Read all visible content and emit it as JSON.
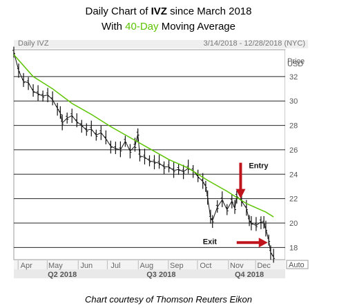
{
  "title": {
    "pre": "Daily Chart of ",
    "ticker": "IVZ",
    "post": " since March 2018",
    "line2_pre": "With ",
    "line2_hl": "40-Day",
    "line2_post": " Moving Average"
  },
  "panel": {
    "left_label": "Daily IVZ",
    "date_range": "3/14/2018 - 12/28/2018 (NYC)",
    "axis_title_1": "Price",
    "axis_title_2": "USD",
    "auto_label": "Auto"
  },
  "caption": "Chart courtesy of Thomson Reuters Eikon",
  "colors": {
    "ma": "#5cc400",
    "price": "#111111",
    "arrow": "#c0141c",
    "grid": "#222222",
    "band": "#e9e9e9"
  },
  "chart_data": {
    "type": "line",
    "title": "Daily Chart of IVZ since March 2018",
    "subtitle": "With 40-Day Moving Average",
    "ylabel": "Price USD",
    "ylim": [
      17,
      34.2
    ],
    "yticks": [
      18,
      20,
      22,
      24,
      26,
      28,
      30,
      32
    ],
    "x_month_labels": [
      "Apr",
      "May",
      "Jun",
      "Jul",
      "Aug",
      "Sep",
      "Oct",
      "Nov",
      "Dec"
    ],
    "x_month_positions": [
      13,
      43,
      75,
      105,
      137,
      168,
      198,
      230,
      258
    ],
    "x_quarter_labels": [
      "Q2 2018",
      "Q3 2018",
      "Q4 2018"
    ],
    "x_quarter_positions": [
      50,
      152,
      243
    ],
    "x_range": [
      0,
      280
    ],
    "series": [
      {
        "name": "IVZ",
        "style": "ohlc",
        "x": [
          0,
          5,
          10,
          15,
          20,
          25,
          30,
          35,
          40,
          45,
          48,
          50,
          55,
          60,
          65,
          70,
          75,
          80,
          85,
          90,
          95,
          100,
          105,
          110,
          115,
          120,
          125,
          128,
          130,
          135,
          140,
          145,
          150,
          155,
          160,
          165,
          170,
          175,
          180,
          185,
          190,
          195,
          198,
          200,
          203,
          205,
          210,
          215,
          220,
          225,
          228,
          230,
          235,
          240,
          243,
          245,
          250,
          255,
          258,
          260,
          263,
          265,
          268
        ],
        "y": [
          34.0,
          32.5,
          31.6,
          31.5,
          30.8,
          30.6,
          30.4,
          30.5,
          30.1,
          29.4,
          29.0,
          28.2,
          28.6,
          28.8,
          28.3,
          28.0,
          27.6,
          27.7,
          27.2,
          27.4,
          26.9,
          26.3,
          26.1,
          26.0,
          26.7,
          25.9,
          26.3,
          27.3,
          25.5,
          25.4,
          25.1,
          25.0,
          24.9,
          24.6,
          24.6,
          24.3,
          24.4,
          24.2,
          24.5,
          24.3,
          23.8,
          23.4,
          23.0,
          22.1,
          20.4,
          20.2,
          21.3,
          21.9,
          21.1,
          21.8,
          21.2,
          22.2,
          21.8,
          21.2,
          20.2,
          20.0,
          19.8,
          20.1,
          20.0,
          19.5,
          18.6,
          17.6,
          17.2
        ]
      },
      {
        "name": "40-Day Moving Average",
        "x": [
          0,
          20,
          40,
          60,
          80,
          100,
          120,
          140,
          160,
          180,
          200,
          220,
          240,
          260,
          268
        ],
        "y": [
          33.8,
          32.0,
          31.0,
          29.8,
          28.9,
          27.9,
          27.0,
          26.1,
          25.2,
          24.5,
          23.5,
          22.6,
          21.6,
          20.9,
          20.5
        ]
      }
    ],
    "annotations": [
      {
        "text": "Entry",
        "x": 234,
        "price": 22.0
      },
      {
        "text": "Exit",
        "x": 262,
        "price": 18.4
      }
    ],
    "grid": true,
    "legend": "none"
  }
}
